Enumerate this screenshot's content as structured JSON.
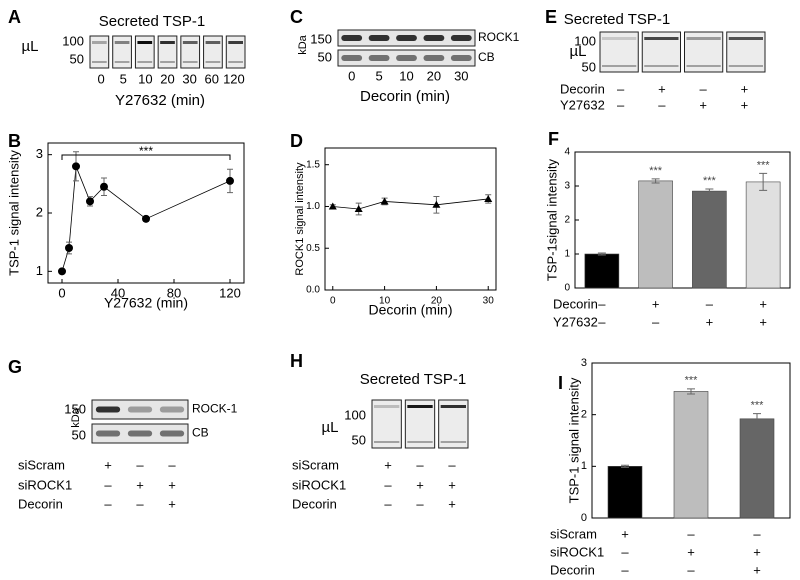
{
  "panel_labels": [
    "A",
    "B",
    "C",
    "D",
    "E",
    "F",
    "G",
    "H",
    "I"
  ],
  "blots": [
    {
      "title": "Secreted TSP-1",
      "unit": "µL",
      "markers": [
        "100",
        "50"
      ],
      "lanes": [
        "0",
        "5",
        "10",
        "20",
        "30",
        "60",
        "120"
      ],
      "xlabel": "Y27632 (min)"
    },
    {
      "unit": "kDa",
      "markers": [
        "150",
        "50"
      ],
      "bands": [
        "ROCK1",
        "CB"
      ],
      "lanes": [
        "0",
        "5",
        "10",
        "20",
        "30"
      ],
      "xlabel": "Decorin (min)"
    },
    {
      "title": "Secreted TSP-1",
      "unit": "µL",
      "markers": [
        "100",
        "50"
      ],
      "conditions": [
        {
          "name": "Decorin",
          "signs": [
            "–",
            "+",
            "–",
            "+"
          ]
        },
        {
          "name": "Y27632",
          "signs": [
            "–",
            "–",
            "+",
            "+"
          ]
        }
      ]
    },
    {
      "unit": "kDa",
      "markers": [
        "150",
        "50"
      ],
      "bands": [
        "ROCK-1",
        "CB"
      ],
      "conditions": [
        {
          "name": "siScram",
          "signs": [
            "+",
            "–",
            "–"
          ]
        },
        {
          "name": "siROCK1",
          "signs": [
            "–",
            "+",
            "+"
          ]
        },
        {
          "name": "Decorin",
          "signs": [
            "–",
            "–",
            "+"
          ]
        }
      ]
    },
    {
      "title": "Secreted TSP-1",
      "unit": "µL",
      "markers": [
        "100",
        "50"
      ],
      "conditions": [
        {
          "name": "siScram",
          "signs": [
            "+",
            "–",
            "–"
          ]
        },
        {
          "name": "siROCK1",
          "signs": [
            "–",
            "+",
            "+"
          ]
        },
        {
          "name": "Decorin",
          "signs": [
            "–",
            "–",
            "+"
          ]
        }
      ]
    }
  ],
  "chart_data": [
    {
      "type": "line",
      "marker": "circle",
      "x_label": "Y27632 (min)",
      "y_label": "TSP-1 signal intensity",
      "x": [
        0,
        5,
        10,
        20,
        30,
        60,
        120
      ],
      "values": [
        1.0,
        1.4,
        2.8,
        2.2,
        2.45,
        1.9,
        2.55
      ],
      "errors": [
        0.03,
        0.1,
        0.25,
        0.08,
        0.15,
        0.04,
        0.2
      ],
      "xlim": [
        -10,
        130
      ],
      "xticks": [
        0,
        40,
        80,
        120
      ],
      "ylim": [
        0.8,
        3.2
      ],
      "yticks": [
        1,
        2,
        3
      ],
      "annotation": "***",
      "color": "#000000"
    },
    {
      "type": "line",
      "marker": "triangle",
      "x_label": "Decorin (min)",
      "y_label": "ROCK1 signal intensity",
      "x": [
        0,
        5,
        10,
        20,
        30
      ],
      "values": [
        1.0,
        0.97,
        1.06,
        1.02,
        1.09
      ],
      "errors": [
        0.02,
        0.07,
        0.04,
        0.1,
        0.05
      ],
      "xlim": [
        -1.5,
        31.5
      ],
      "xticks": [
        0,
        10,
        20,
        30
      ],
      "ylim": [
        0,
        1.7
      ],
      "yticks": [
        {
          "value": 0,
          "label": "0.0"
        },
        {
          "value": 0.5,
          "label": "0.5"
        },
        {
          "value": 1,
          "label": "1.0"
        },
        {
          "value": 1.5,
          "label": "1.5"
        }
      ],
      "color": "#000000"
    },
    {
      "type": "bar",
      "y_label": "TSP-1signal intensity",
      "values": [
        1.0,
        3.15,
        2.85,
        3.12
      ],
      "errors": [
        0.03,
        0.06,
        0.06,
        0.25
      ],
      "colors": [
        "#000000",
        "#bdbdbd",
        "#666666",
        "#e0e0e0"
      ],
      "significance": [
        null,
        "***",
        "***",
        "***"
      ],
      "ylim": [
        0,
        4
      ],
      "yticks": [
        0,
        1,
        2,
        3,
        4
      ],
      "conditions": [
        {
          "name": "Decorin",
          "signs": [
            "–",
            "+",
            "–",
            "+"
          ]
        },
        {
          "name": "Y27632",
          "signs": [
            "–",
            "–",
            "+",
            "+"
          ]
        }
      ]
    },
    {
      "type": "bar",
      "y_label": "TSP-1 signal intensity",
      "values": [
        1.0,
        2.45,
        1.92
      ],
      "errors": [
        0.02,
        0.05,
        0.1
      ],
      "colors": [
        "#000000",
        "#bdbdbd",
        "#666666"
      ],
      "significance": [
        null,
        "***",
        "***"
      ],
      "ylim": [
        0,
        3
      ],
      "yticks": [
        0,
        1,
        2,
        3
      ],
      "conditions": [
        {
          "name": "siScram",
          "signs": [
            "+",
            "–",
            "–"
          ]
        },
        {
          "name": "siROCK1",
          "signs": [
            "–",
            "+",
            "+"
          ]
        },
        {
          "name": "Decorin",
          "signs": [
            "–",
            "–",
            "+"
          ]
        }
      ]
    }
  ]
}
